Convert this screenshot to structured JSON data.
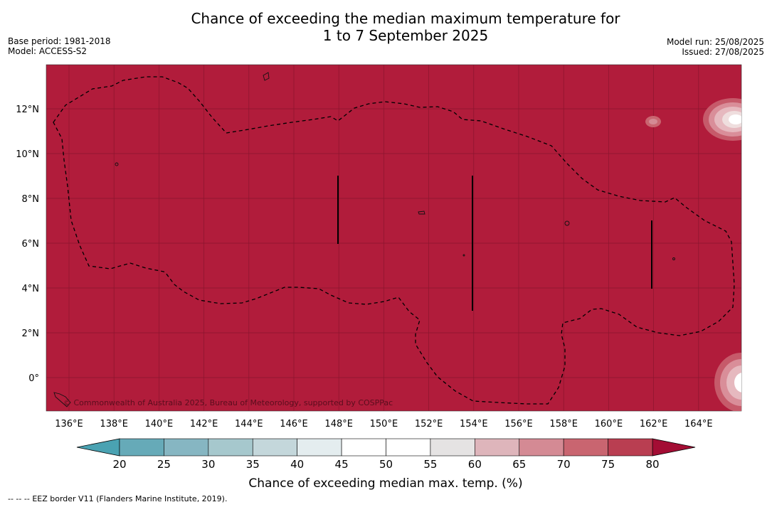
{
  "title": {
    "line1": "Chance of exceeding the median maximum temperature for",
    "line2": "1 to 7 September 2025"
  },
  "meta_left": {
    "base_period": "Base period: 1981-2018",
    "model": "Model: ACCESS-S2"
  },
  "meta_right": {
    "model_run": "Model run: 25/08/2025",
    "issued": "Issued: 27/08/2025"
  },
  "map": {
    "fill_color": "#b11c3b",
    "copyright": "© Commonwealth of Australia 2025, Bureau of Meteorology, supported by COSPPac",
    "lat_labels": [
      "12°N",
      "10°N",
      "8°N",
      "6°N",
      "4°N",
      "2°N",
      "0°"
    ],
    "lon_labels": [
      "136°E",
      "138°E",
      "140°E",
      "142°E",
      "144°E",
      "146°E",
      "148°E",
      "150°E",
      "152°E",
      "154°E",
      "156°E",
      "158°E",
      "160°E",
      "162°E",
      "164°E"
    ]
  },
  "colorbar": {
    "title": "Chance of exceeding median max. temp. (%)",
    "ticks": [
      "20",
      "25",
      "30",
      "35",
      "40",
      "45",
      "50",
      "55",
      "60",
      "65",
      "70",
      "75",
      "80"
    ],
    "colors": [
      "#66aab8",
      "#86b6c2",
      "#a6c8cd",
      "#c4d7db",
      "#e4edef",
      "#ffffff",
      "#ffffff",
      "#e5e3e3",
      "#deb5bb",
      "#d48a94",
      "#c96570",
      "#b93e51"
    ],
    "low_color": "#4aa2b2",
    "high_color": "#a30d34"
  },
  "footer": {
    "dash": "--  --  --",
    "text": "EEZ border V11 (Flanders Marine Institute, 2019)."
  }
}
